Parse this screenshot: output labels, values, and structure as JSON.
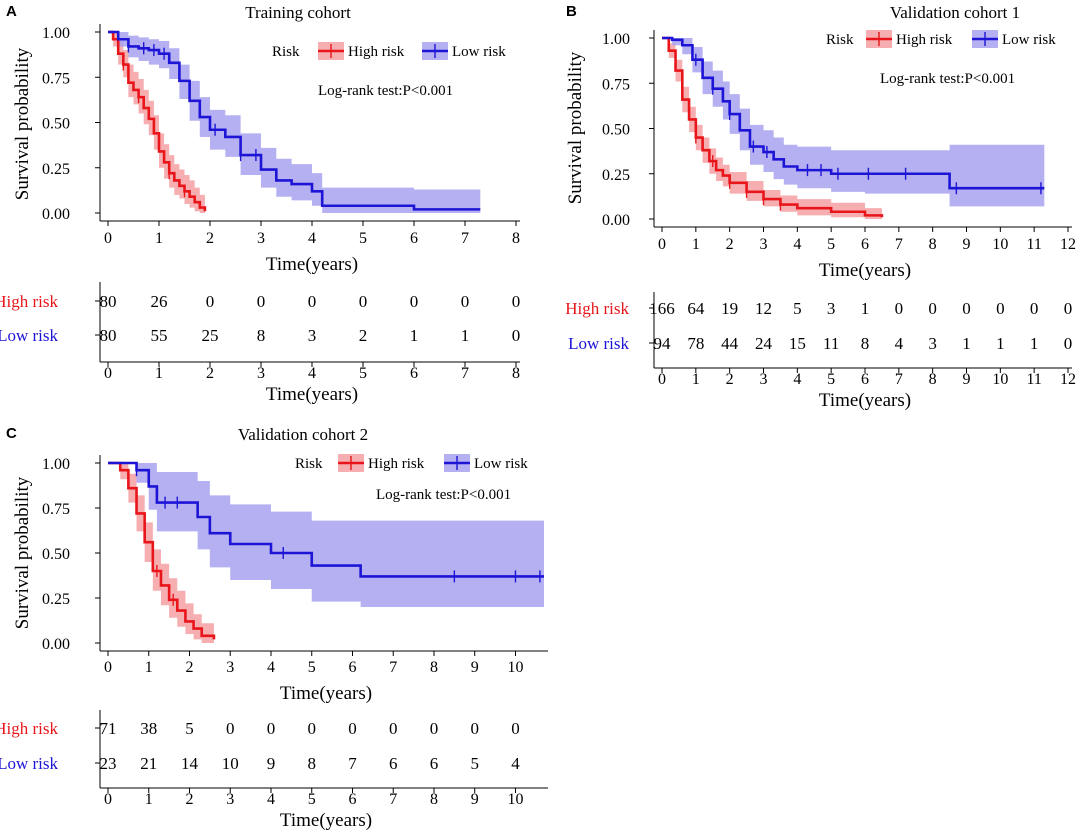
{
  "colors": {
    "high": "#e8161b",
    "low": "#1d14d6",
    "high_fill": "#f4a0a3",
    "low_fill": "#a7a2f0"
  },
  "chart_data": [
    {
      "type": "line",
      "panel": "A",
      "title": "Training cohort",
      "xlabel": "Time(years)",
      "ylabel": "Survival probability",
      "xlim": [
        0,
        8
      ],
      "ylim": [
        0,
        1
      ],
      "x_ticks": [
        "0",
        "1",
        "2",
        "3",
        "4",
        "5",
        "6",
        "7",
        "8"
      ],
      "y_ticks": [
        "0.00",
        "0.25",
        "0.50",
        "0.75",
        "1.00"
      ],
      "legend_title": "Risk",
      "annotation": "Log-rank test:P<0.001",
      "series": [
        {
          "name": "High risk",
          "x": [
            0,
            0.1,
            0.2,
            0.3,
            0.4,
            0.5,
            0.6,
            0.7,
            0.8,
            0.9,
            1.0,
            1.1,
            1.2,
            1.3,
            1.4,
            1.5,
            1.6,
            1.7,
            1.8,
            1.9
          ],
          "y": [
            1.0,
            0.96,
            0.88,
            0.82,
            0.72,
            0.68,
            0.64,
            0.58,
            0.52,
            0.44,
            0.34,
            0.28,
            0.22,
            0.18,
            0.15,
            0.12,
            0.09,
            0.06,
            0.03,
            0.01
          ],
          "lower": [
            1.0,
            0.92,
            0.82,
            0.75,
            0.64,
            0.6,
            0.55,
            0.49,
            0.43,
            0.35,
            0.25,
            0.19,
            0.14,
            0.1,
            0.08,
            0.05,
            0.03,
            0.01,
            0.0,
            0.0
          ],
          "upper": [
            1.0,
            1.0,
            0.95,
            0.9,
            0.82,
            0.78,
            0.74,
            0.68,
            0.62,
            0.54,
            0.44,
            0.38,
            0.32,
            0.27,
            0.24,
            0.21,
            0.18,
            0.14,
            0.1,
            0.05
          ],
          "censor_x": [
            0.3,
            0.6,
            1.2,
            1.5
          ]
        },
        {
          "name": "Low risk",
          "x": [
            0,
            0.2,
            0.4,
            0.6,
            0.8,
            1.0,
            1.2,
            1.4,
            1.6,
            1.8,
            2.0,
            2.3,
            2.6,
            3.0,
            3.3,
            3.6,
            4.0,
            4.2,
            5.0,
            6.0,
            7.3
          ],
          "y": [
            1.0,
            0.96,
            0.92,
            0.91,
            0.9,
            0.88,
            0.83,
            0.73,
            0.62,
            0.53,
            0.46,
            0.42,
            0.32,
            0.24,
            0.18,
            0.16,
            0.12,
            0.04,
            0.04,
            0.02,
            0.02
          ],
          "lower": [
            1.0,
            0.92,
            0.86,
            0.84,
            0.82,
            0.8,
            0.74,
            0.63,
            0.51,
            0.42,
            0.35,
            0.31,
            0.21,
            0.14,
            0.09,
            0.07,
            0.04,
            0.0,
            0.0,
            0.0,
            0.0
          ],
          "upper": [
            1.0,
            1.0,
            0.98,
            0.97,
            0.96,
            0.95,
            0.91,
            0.82,
            0.73,
            0.64,
            0.57,
            0.54,
            0.44,
            0.36,
            0.3,
            0.27,
            0.22,
            0.14,
            0.14,
            0.13,
            0.13
          ],
          "censor_x": [
            0.4,
            0.7,
            0.9,
            1.1,
            2.1,
            2.6,
            2.9
          ]
        }
      ],
      "risk_table": {
        "labels": [
          "High risk",
          "Low risk"
        ],
        "x_ticks": [
          "0",
          "1",
          "2",
          "3",
          "4",
          "5",
          "6",
          "7",
          "8"
        ],
        "rows": [
          [
            "80",
            "26",
            "0",
            "0",
            "0",
            "0",
            "0",
            "0",
            "0"
          ],
          [
            "80",
            "55",
            "25",
            "8",
            "3",
            "2",
            "1",
            "1",
            "0"
          ]
        ]
      }
    },
    {
      "type": "line",
      "panel": "B",
      "title": "Validation cohort 1",
      "xlabel": "Time(years)",
      "ylabel": "Survival probability",
      "xlim": [
        0,
        12
      ],
      "ylim": [
        0,
        1
      ],
      "x_ticks": [
        "0",
        "1",
        "2",
        "3",
        "4",
        "5",
        "6",
        "7",
        "8",
        "9",
        "10",
        "11",
        "12"
      ],
      "y_ticks": [
        "0.00",
        "0.25",
        "0.50",
        "0.75",
        "1.00"
      ],
      "legend_title": "Risk",
      "annotation": "Log-rank test:P<0.001",
      "series": [
        {
          "name": "High risk",
          "x": [
            0,
            0.2,
            0.4,
            0.6,
            0.8,
            1.0,
            1.2,
            1.4,
            1.6,
            1.8,
            2.0,
            2.5,
            3.0,
            3.5,
            4.0,
            5.0,
            6.0,
            6.5
          ],
          "y": [
            1.0,
            0.93,
            0.82,
            0.66,
            0.55,
            0.45,
            0.38,
            0.32,
            0.27,
            0.24,
            0.2,
            0.15,
            0.11,
            0.08,
            0.06,
            0.04,
            0.02,
            0.01
          ],
          "lower": [
            1.0,
            0.89,
            0.76,
            0.59,
            0.48,
            0.38,
            0.31,
            0.25,
            0.21,
            0.18,
            0.14,
            0.1,
            0.07,
            0.04,
            0.02,
            0.01,
            0.0,
            0.0
          ],
          "upper": [
            1.0,
            0.97,
            0.88,
            0.73,
            0.62,
            0.52,
            0.45,
            0.39,
            0.34,
            0.3,
            0.26,
            0.21,
            0.16,
            0.13,
            0.11,
            0.09,
            0.06,
            0.05
          ],
          "censor_x": [
            1.0,
            1.5,
            2.0,
            2.5,
            3.0,
            3.5
          ]
        },
        {
          "name": "Low risk",
          "x": [
            0,
            0.3,
            0.6,
            0.9,
            1.2,
            1.5,
            1.8,
            2.0,
            2.3,
            2.6,
            3.0,
            3.3,
            3.6,
            4.0,
            5.0,
            6.0,
            8.5,
            11.3
          ],
          "y": [
            1.0,
            0.99,
            0.96,
            0.88,
            0.78,
            0.72,
            0.65,
            0.58,
            0.49,
            0.4,
            0.37,
            0.33,
            0.29,
            0.27,
            0.25,
            0.25,
            0.17,
            0.17
          ],
          "lower": [
            1.0,
            0.96,
            0.91,
            0.81,
            0.69,
            0.62,
            0.55,
            0.47,
            0.38,
            0.3,
            0.26,
            0.22,
            0.19,
            0.17,
            0.15,
            0.14,
            0.07,
            0.07
          ],
          "upper": [
            1.0,
            1.0,
            1.0,
            0.95,
            0.87,
            0.82,
            0.76,
            0.69,
            0.61,
            0.52,
            0.49,
            0.45,
            0.41,
            0.4,
            0.38,
            0.38,
            0.41,
            0.41
          ],
          "censor_x": [
            1.0,
            1.5,
            2.0,
            2.7,
            3.1,
            4.3,
            4.7,
            5.2,
            6.1,
            7.2,
            8.7,
            11.2
          ]
        }
      ],
      "risk_table": {
        "labels": [
          "High risk",
          "Low risk"
        ],
        "x_ticks": [
          "0",
          "1",
          "2",
          "3",
          "4",
          "5",
          "6",
          "7",
          "8",
          "9",
          "10",
          "11",
          "12"
        ],
        "rows": [
          [
            "166",
            "64",
            "19",
            "12",
            "5",
            "3",
            "1",
            "0",
            "0",
            "0",
            "0",
            "0",
            "0"
          ],
          [
            "94",
            "78",
            "44",
            "24",
            "15",
            "11",
            "8",
            "4",
            "3",
            "1",
            "1",
            "1",
            "0"
          ]
        ]
      }
    },
    {
      "type": "line",
      "panel": "C",
      "title": "Validation cohort 2",
      "xlabel": "Time(years)",
      "ylabel": "Survival probability",
      "xlim": [
        0,
        10.7
      ],
      "ylim": [
        0,
        1
      ],
      "x_ticks": [
        "0",
        "1",
        "2",
        "3",
        "4",
        "5",
        "6",
        "7",
        "8",
        "9",
        "10"
      ],
      "y_ticks": [
        "0.00",
        "0.25",
        "0.50",
        "0.75",
        "1.00"
      ],
      "legend_title": "Risk",
      "annotation": "Log-rank test:P<0.001",
      "series": [
        {
          "name": "High risk",
          "x": [
            0,
            0.3,
            0.5,
            0.7,
            0.9,
            1.1,
            1.3,
            1.5,
            1.7,
            1.9,
            2.1,
            2.3,
            2.6
          ],
          "y": [
            1.0,
            0.96,
            0.86,
            0.72,
            0.56,
            0.4,
            0.32,
            0.24,
            0.18,
            0.12,
            0.08,
            0.04,
            0.02
          ],
          "lower": [
            1.0,
            0.91,
            0.78,
            0.62,
            0.45,
            0.29,
            0.21,
            0.14,
            0.09,
            0.05,
            0.02,
            0.0,
            0.0
          ],
          "upper": [
            1.0,
            1.0,
            0.94,
            0.82,
            0.67,
            0.52,
            0.44,
            0.36,
            0.29,
            0.22,
            0.16,
            0.11,
            0.07
          ],
          "censor_x": [
            1.2,
            1.6
          ]
        },
        {
          "name": "Low risk",
          "x": [
            0,
            0.7,
            1.0,
            1.2,
            2.2,
            2.5,
            3.0,
            4.0,
            5.0,
            6.2,
            8.5,
            10.7
          ],
          "y": [
            1.0,
            0.96,
            0.87,
            0.78,
            0.7,
            0.61,
            0.55,
            0.5,
            0.43,
            0.37,
            0.37,
            0.37
          ],
          "lower": [
            1.0,
            0.89,
            0.74,
            0.62,
            0.52,
            0.42,
            0.35,
            0.3,
            0.23,
            0.2,
            0.2,
            0.2
          ],
          "upper": [
            1.0,
            1.0,
            1.0,
            0.95,
            0.9,
            0.82,
            0.77,
            0.73,
            0.68,
            0.68,
            0.68,
            0.68
          ],
          "censor_x": [
            0.7,
            1.4,
            1.7,
            4.3,
            8.5,
            10.0,
            10.6
          ]
        }
      ],
      "risk_table": {
        "labels": [
          "High risk",
          "Low risk"
        ],
        "x_ticks": [
          "0",
          "1",
          "2",
          "3",
          "4",
          "5",
          "6",
          "7",
          "8",
          "9",
          "10"
        ],
        "rows": [
          [
            "71",
            "38",
            "5",
            "0",
            "0",
            "0",
            "0",
            "0",
            "0",
            "0",
            "0"
          ],
          [
            "23",
            "21",
            "14",
            "10",
            "9",
            "8",
            "7",
            "6",
            "6",
            "5",
            "4"
          ]
        ]
      }
    }
  ]
}
